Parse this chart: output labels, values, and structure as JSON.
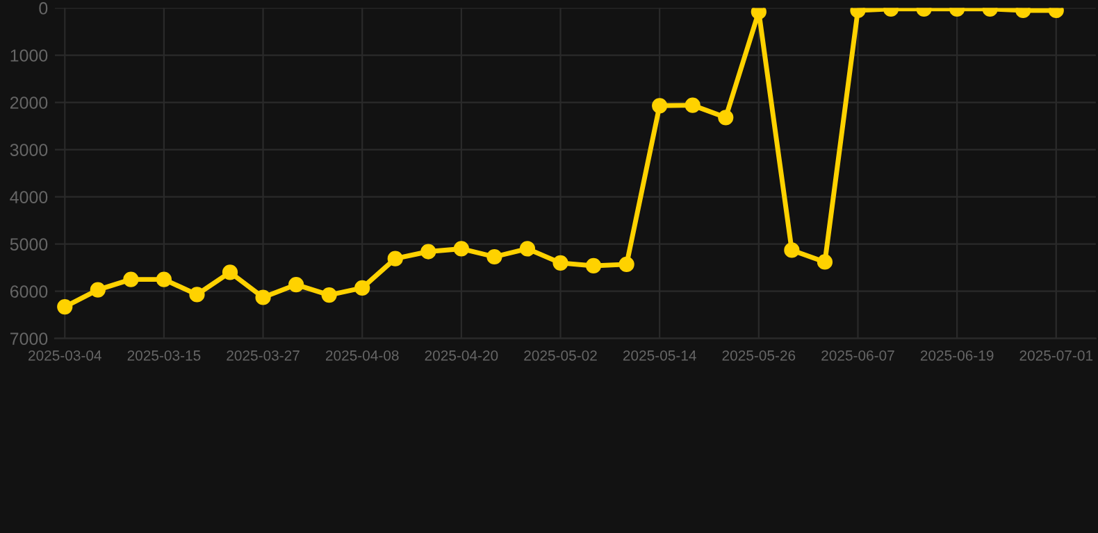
{
  "chart_data": {
    "type": "line",
    "categories": [
      "2025-03-04",
      null,
      null,
      "2025-03-15",
      null,
      null,
      "2025-03-27",
      null,
      null,
      "2025-04-08",
      null,
      null,
      "2025-04-20",
      null,
      null,
      "2025-05-02",
      null,
      null,
      "2025-05-14",
      null,
      null,
      "2025-05-26",
      null,
      null,
      "2025-06-07",
      null,
      null,
      "2025-06-19",
      null,
      null,
      "2025-07-01"
    ],
    "series": [
      {
        "color": "#ffd200",
        "values": [
          6330,
          5970,
          5750,
          5750,
          6070,
          5600,
          6130,
          5860,
          6080,
          5930,
          5310,
          5160,
          5100,
          5270,
          5100,
          5400,
          5460,
          5430,
          2070,
          2060,
          2320,
          80,
          5130,
          5380,
          50,
          20,
          20,
          20,
          20,
          50,
          50
        ]
      }
    ],
    "ylim": [
      7000,
      0
    ],
    "yticks": [
      0,
      1000,
      2000,
      3000,
      4000,
      5000,
      6000,
      7000
    ],
    "grid": true,
    "marker": "circle",
    "line_style": "solid"
  }
}
